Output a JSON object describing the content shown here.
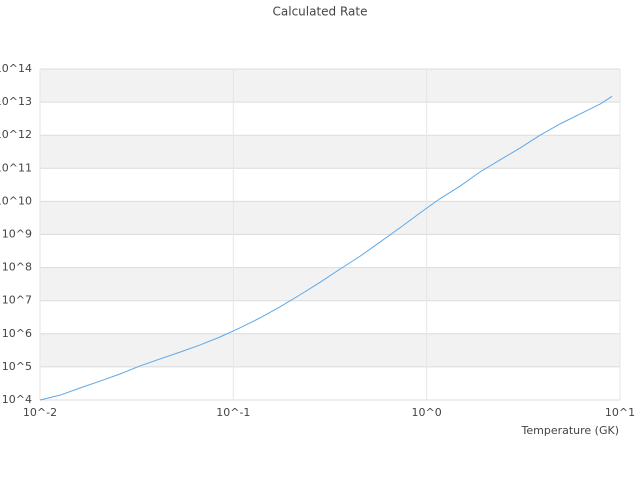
{
  "chart_data": {
    "type": "line",
    "title": "Calculated Rate",
    "x_label": "Temperature (GK)",
    "x": [
      0.01,
      0.0127,
      0.0161,
      0.0204,
      0.0259,
      0.0329,
      0.0418,
      0.053,
      0.0673,
      0.0853,
      0.108,
      0.137,
      0.174,
      0.221,
      0.281,
      0.356,
      0.452,
      0.574,
      0.728,
      0.925,
      1.17,
      1.49,
      1.89,
      2.4,
      3.04,
      3.86,
      4.9,
      6.22,
      7.89,
      9.1
    ],
    "series": [
      {
        "color": "#5ea8e8",
        "values": [
          10000,
          14000,
          23000,
          37000,
          61000,
          107000,
          174000,
          280000,
          460000,
          800000,
          1500000,
          3000000,
          6500000,
          15000000,
          36000000,
          90000000,
          220000000,
          590000000,
          1600000000,
          4500000000,
          12000000000,
          29000000000,
          78000000000,
          180000000000,
          410000000000,
          1000000000000,
          2200000000000,
          4400000000000,
          8700000000000,
          15000000000000
        ]
      }
    ],
    "xscale": "log",
    "yscale": "log",
    "xlim": [
      0.01,
      10
    ],
    "ylim": [
      10000,
      100000000000000
    ],
    "xticks": [
      {
        "value": 0.01,
        "label": "10^-2"
      },
      {
        "value": 0.1,
        "label": "10^-1"
      },
      {
        "value": 1,
        "label": "10^0"
      },
      {
        "value": 10,
        "label": "10^1"
      }
    ],
    "yticks": [
      {
        "value": 10000,
        "label": "10^4"
      },
      {
        "value": 100000,
        "label": "10^5"
      },
      {
        "value": 1000000,
        "label": "10^6"
      },
      {
        "value": 10000000,
        "label": "10^7"
      },
      {
        "value": 100000000,
        "label": "10^8"
      },
      {
        "value": 1000000000,
        "label": "10^9"
      },
      {
        "value": 10000000000,
        "label": "10^10"
      },
      {
        "value": 100000000000,
        "label": "10^11"
      },
      {
        "value": 1000000000000,
        "label": "10^12"
      },
      {
        "value": 10000000000000,
        "label": "10^13"
      },
      {
        "value": 100000000000000,
        "label": "10^14"
      }
    ],
    "grid": true
  }
}
